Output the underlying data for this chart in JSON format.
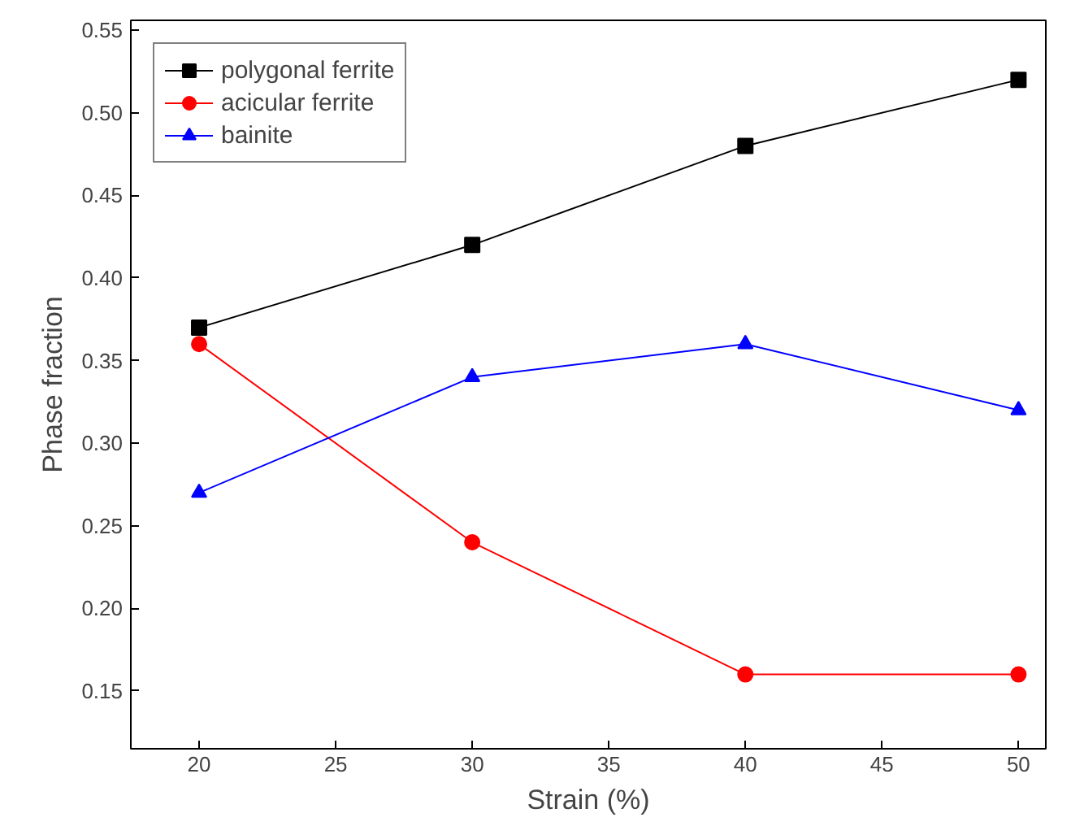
{
  "chart_data": {
    "type": "line",
    "xlabel": "Strain (%)",
    "ylabel": "Phase fraction",
    "x": [
      20,
      30,
      40,
      50
    ],
    "series": [
      {
        "name": "polygonal ferrite",
        "color": "#000000",
        "marker": "square",
        "values": [
          0.37,
          0.42,
          0.48,
          0.52
        ]
      },
      {
        "name": "acicular ferrite",
        "color": "#ff0000",
        "marker": "circle",
        "values": [
          0.36,
          0.24,
          0.16,
          0.16
        ]
      },
      {
        "name": "bainite",
        "color": "#0000ff",
        "marker": "triangle",
        "values": [
          0.27,
          0.34,
          0.36,
          0.32
        ]
      }
    ],
    "xlim": [
      17.5,
      51
    ],
    "xticks": [
      20,
      25,
      30,
      35,
      40,
      45,
      50
    ],
    "ylim": [
      0.115,
      0.556
    ],
    "yticks": [
      {
        "value": 0.15,
        "label": "0.15"
      },
      {
        "value": 0.2,
        "label": "0.20"
      },
      {
        "value": 0.25,
        "label": "0.25"
      },
      {
        "value": 0.3,
        "label": "0.30"
      },
      {
        "value": 0.35,
        "label": "0.35"
      },
      {
        "value": 0.4,
        "label": "0.40"
      },
      {
        "value": 0.45,
        "label": "0.45"
      },
      {
        "value": 0.5,
        "label": "0.50"
      },
      {
        "value": 0.55,
        "label": "0.55"
      }
    ],
    "line_style": "solid",
    "grid": false,
    "legend": "top left"
  }
}
